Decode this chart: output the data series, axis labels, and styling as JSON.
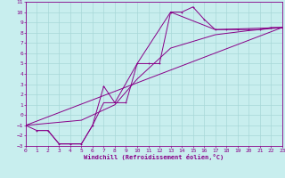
{
  "xlabel": "Windchill (Refroidissement éolien,°C)",
  "background_color": "#c8eeee",
  "line_color": "#880088",
  "grid_color": "#a8d8d8",
  "xlim": [
    0,
    23
  ],
  "ylim": [
    -3,
    11
  ],
  "xticks": [
    0,
    1,
    2,
    3,
    4,
    5,
    6,
    7,
    8,
    9,
    10,
    11,
    12,
    13,
    14,
    15,
    16,
    17,
    18,
    19,
    20,
    21,
    22,
    23
  ],
  "yticks": [
    -3,
    -2,
    -1,
    0,
    1,
    2,
    3,
    4,
    5,
    6,
    7,
    8,
    9,
    10,
    11
  ],
  "line1_x": [
    0,
    1,
    2,
    3,
    4,
    5,
    6,
    7,
    8,
    9,
    10,
    11,
    12,
    13,
    14,
    15,
    16,
    17,
    18,
    19,
    20,
    21,
    22,
    23
  ],
  "line1_y": [
    -1.0,
    -1.5,
    -1.5,
    -2.8,
    -2.8,
    -2.8,
    -1.0,
    2.8,
    1.2,
    1.2,
    5.0,
    5.0,
    5.0,
    10.0,
    10.0,
    10.5,
    9.3,
    8.3,
    8.3,
    8.3,
    8.3,
    8.3,
    8.5,
    8.5
  ],
  "line2_x": [
    1,
    2,
    3,
    4,
    5,
    6,
    7,
    8,
    10,
    13,
    17,
    23
  ],
  "line2_y": [
    -1.5,
    -1.5,
    -2.8,
    -2.8,
    -2.8,
    -1.0,
    1.2,
    1.2,
    5.0,
    10.0,
    8.3,
    8.5
  ],
  "line3_x": [
    0,
    23
  ],
  "line3_y": [
    -1.0,
    8.5
  ],
  "line4_x": [
    0,
    5,
    8,
    10,
    13,
    17,
    20,
    23
  ],
  "line4_y": [
    -1.0,
    -0.5,
    1.0,
    3.5,
    6.5,
    7.8,
    8.2,
    8.5
  ]
}
